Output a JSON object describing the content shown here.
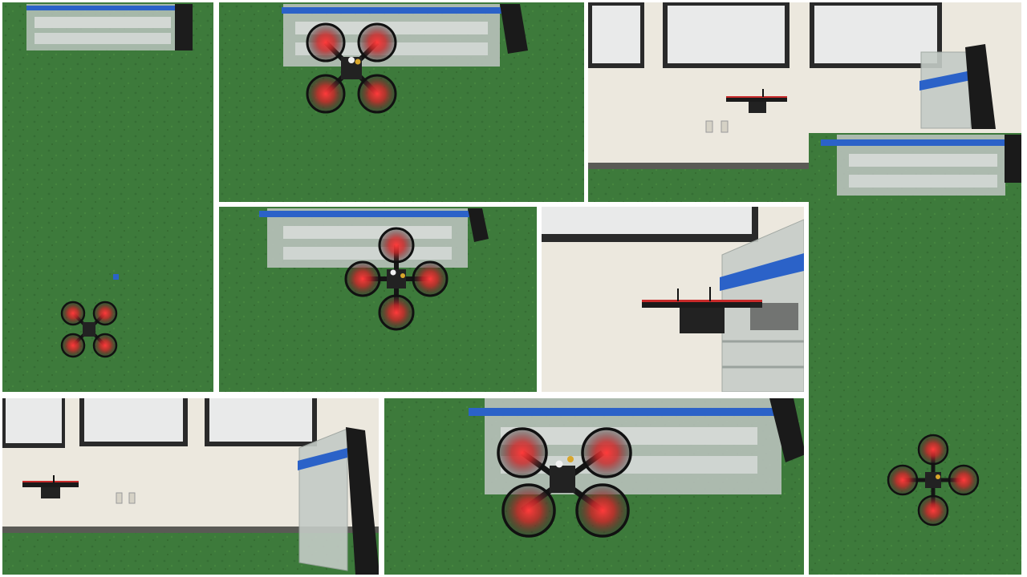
{
  "collage": {
    "panels": [
      {
        "view": "top-down",
        "scene": "drone-small-near-blue-marker"
      },
      {
        "view": "top-down",
        "scene": "drone-under-shelf"
      },
      {
        "view": "side",
        "scene": "drone-hovering-near-wall"
      },
      {
        "view": "top-down",
        "scene": "drone-below-shelf-center"
      },
      {
        "view": "side",
        "scene": "drone-entering-shelf-closeup"
      },
      {
        "view": "top-down",
        "scene": "drone-far-on-turf"
      },
      {
        "view": "side",
        "scene": "drone-far-left-wall"
      },
      {
        "view": "top-down",
        "scene": "drone-large-under-shelf"
      }
    ],
    "colors": {
      "turf": "#3d7a3b",
      "turf_dark": "#356e34",
      "wall": "#ebe6da",
      "tape": "#2b62c8",
      "rotor_light": "#e02828",
      "window_frame": "#2a2a2a"
    }
  }
}
